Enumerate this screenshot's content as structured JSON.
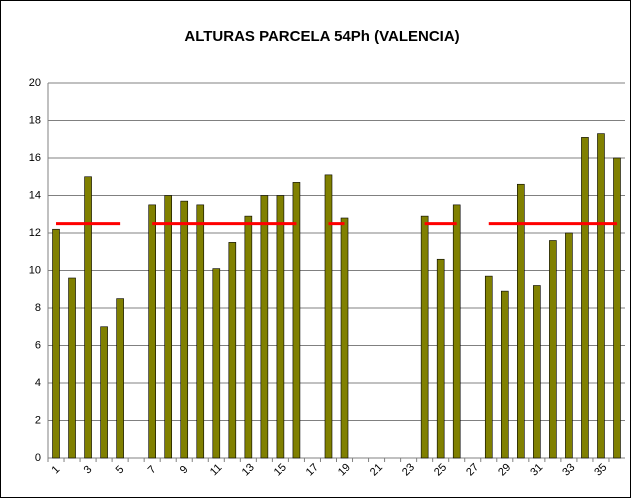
{
  "chart_data": {
    "type": "bar",
    "title": "ALTURAS PARCELA 54Ph (VALENCIA)",
    "categories": [
      1,
      null,
      3,
      null,
      5,
      null,
      7,
      null,
      9,
      null,
      11,
      null,
      13,
      null,
      15,
      null,
      17,
      null,
      19,
      null,
      21,
      null,
      23,
      null,
      25,
      null,
      27,
      null,
      29,
      null,
      31,
      null,
      33,
      null,
      35,
      null
    ],
    "series": [
      {
        "type": "bar",
        "color": "#808000",
        "values": [
          12.2,
          9.6,
          15.0,
          7.0,
          8.5,
          null,
          13.5,
          14.0,
          13.7,
          13.5,
          10.1,
          11.5,
          12.9,
          14.0,
          14.0,
          14.7,
          null,
          15.1,
          12.8,
          null,
          null,
          null,
          null,
          12.9,
          10.6,
          13.5,
          null,
          9.7,
          8.9,
          14.6,
          9.2,
          11.6,
          12.0,
          17.1,
          17.3,
          16.0
        ]
      },
      {
        "type": "line",
        "color": "#ff0000",
        "values": [
          12.5,
          12.5,
          12.5,
          12.5,
          12.5,
          null,
          12.5,
          12.5,
          12.5,
          12.5,
          12.5,
          12.5,
          12.5,
          12.5,
          12.5,
          12.5,
          null,
          12.5,
          12.5,
          null,
          null,
          null,
          null,
          12.5,
          12.5,
          12.5,
          null,
          12.5,
          12.5,
          12.5,
          12.5,
          12.5,
          12.5,
          12.5,
          12.5,
          12.5
        ]
      }
    ],
    "ylim": [
      0,
      20
    ],
    "yticks": [
      0,
      2,
      4,
      6,
      8,
      10,
      12,
      14,
      16,
      18,
      20
    ],
    "grid": true
  }
}
